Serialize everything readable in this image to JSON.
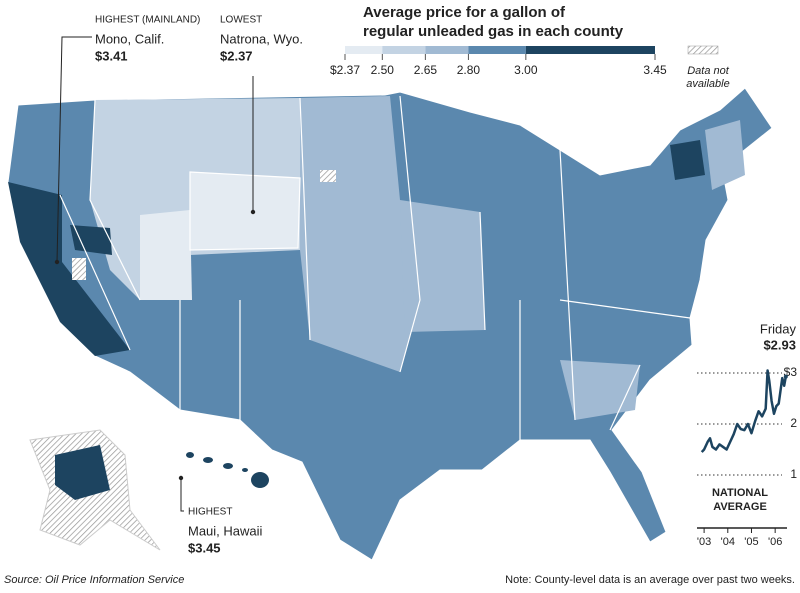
{
  "title": [
    "Average price for a gallon of",
    "regular unleaded gas in each county"
  ],
  "legend": {
    "breaks": [
      {
        "value": 2.37,
        "label": "$2.37"
      },
      {
        "value": 2.5,
        "label": "2.50"
      },
      {
        "value": 2.65,
        "label": "2.65"
      },
      {
        "value": 2.8,
        "label": "2.80"
      },
      {
        "value": 3,
        "label": "3.00"
      },
      {
        "value": 3.45,
        "label": "3.45"
      }
    ],
    "colors": [
      "#e4ebf2",
      "#c3d3e3",
      "#a1bad3",
      "#5b88ae",
      "#1d4460"
    ],
    "no_data_label": [
      "Data not",
      "available"
    ]
  },
  "annotations": [
    {
      "heading": "HIGHEST (MAINLAND)",
      "place": "Mono, Calif.",
      "price": {
        "value": 3.41,
        "label": "$3.41"
      }
    },
    {
      "heading": "LOWEST",
      "place": "Natrona, Wyo.",
      "price": {
        "value": 2.37,
        "label": "$2.37"
      }
    },
    {
      "heading": "HIGHEST",
      "place": "Maui, Hawaii",
      "price": {
        "value": 3.45,
        "label": "$3.45"
      }
    }
  ],
  "chart_data": {
    "type": "line",
    "title": [
      "NATIONAL",
      "AVERAGE"
    ],
    "color": "#1d4460",
    "x": [
      2002.9,
      2003.0,
      2003.15,
      2003.25,
      2003.35,
      2003.5,
      2003.65,
      2003.8,
      2003.95,
      2004.1,
      2004.25,
      2004.4,
      2004.55,
      2004.7,
      2004.85,
      2005.0,
      2005.15,
      2005.3,
      2005.45,
      2005.6,
      2005.68,
      2005.75,
      2005.85,
      2005.95,
      2006.05,
      2006.15,
      2006.3,
      2006.38,
      2006.45
    ],
    "values": [
      1.45,
      1.5,
      1.65,
      1.72,
      1.55,
      1.5,
      1.6,
      1.55,
      1.5,
      1.65,
      1.8,
      2.0,
      1.9,
      1.88,
      2.0,
      1.82,
      2.05,
      2.25,
      2.15,
      2.3,
      3.05,
      2.85,
      2.45,
      2.2,
      2.35,
      2.4,
      2.9,
      2.75,
      2.93
    ],
    "xlim": [
      2002.7,
      2006.5
    ],
    "ylim": [
      1,
      3
    ],
    "xticks": [
      {
        "value": 2003,
        "label": "'03"
      },
      {
        "value": 2004,
        "label": "'04"
      },
      {
        "value": 2005,
        "label": "'05"
      },
      {
        "value": 2006,
        "label": "'06"
      }
    ],
    "yticks": [
      1,
      2,
      {
        "value": 3,
        "label": "$3"
      }
    ],
    "latest": {
      "label": "Friday",
      "price": {
        "value": 2.93,
        "label": "$2.93"
      }
    }
  },
  "source": "Source: Oil Price Information Service",
  "note": "Note: County-level data is an average over past two weeks."
}
